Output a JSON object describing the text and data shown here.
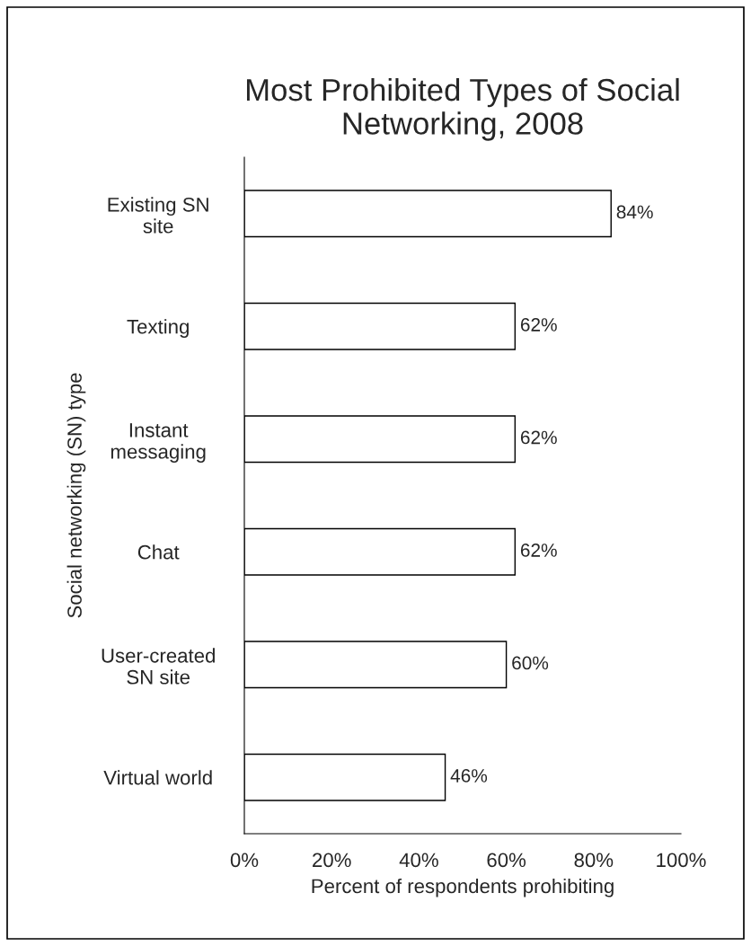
{
  "chart_data": {
    "type": "bar",
    "orientation": "horizontal",
    "title": "Most Prohibited Types of Social Networking, 2008",
    "xlabel": "Percent of respondents prohibiting",
    "ylabel": "Social networking (SN) type",
    "categories": [
      "Existing SN site",
      "Texting",
      "Instant messaging",
      "Chat",
      "User-created SN site",
      "Virtual world"
    ],
    "values": [
      84,
      62,
      62,
      62,
      60,
      46
    ],
    "value_labels": [
      "84%",
      "62%",
      "62%",
      "62%",
      "60%",
      "46%"
    ],
    "color": "#ffffff",
    "xlim": [
      0,
      100
    ],
    "xticks": [
      {
        "value": 0,
        "label": "0%"
      },
      {
        "value": 20,
        "label": "20%"
      },
      {
        "value": 40,
        "label": "40%"
      },
      {
        "value": 60,
        "label": "60%"
      },
      {
        "value": 80,
        "label": "80%"
      },
      {
        "value": 100,
        "label": "100%"
      }
    ],
    "grid": false,
    "legend": false
  }
}
